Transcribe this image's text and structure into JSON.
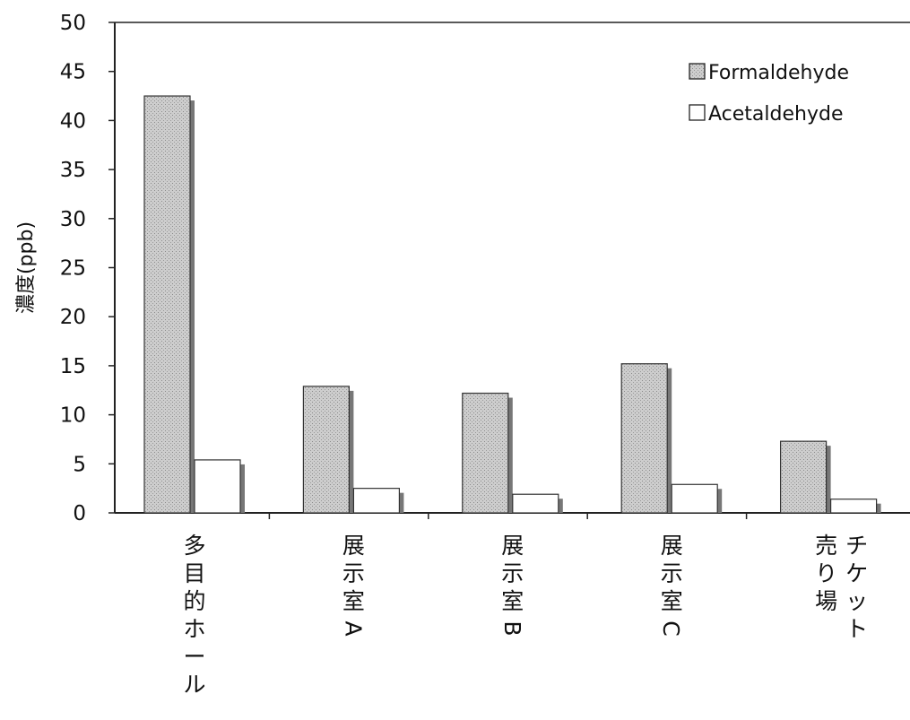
{
  "chart_data": {
    "type": "bar",
    "title": "",
    "xlabel": "",
    "ylabel": "濃度(ppb)",
    "ylim": [
      0,
      50
    ],
    "yticks": [
      0,
      5,
      10,
      15,
      20,
      25,
      30,
      35,
      40,
      45,
      50
    ],
    "grid": false,
    "legend_position": "top-right",
    "categories": [
      [
        "多",
        "目",
        "的",
        "ホ",
        "ー",
        "ル"
      ],
      [
        "展",
        "示",
        "室",
        "A"
      ],
      [
        "展",
        "示",
        "室",
        "B"
      ],
      [
        "展",
        "示",
        "室",
        "C"
      ],
      [
        [
          "売",
          "り",
          "場"
        ],
        [
          "チ",
          "ケ",
          "ッ",
          "ト"
        ]
      ]
    ],
    "series": [
      {
        "name": "Formaldehyde",
        "values": [
          42.5,
          12.9,
          12.2,
          15.2,
          7.3
        ],
        "fill": "#c8c8c8",
        "pattern": "dotted-gray"
      },
      {
        "name": "Acetaldehyde",
        "values": [
          5.4,
          2.5,
          1.9,
          2.9,
          1.4
        ],
        "fill": "#ffffff"
      }
    ],
    "shadow_color": "#777777"
  }
}
